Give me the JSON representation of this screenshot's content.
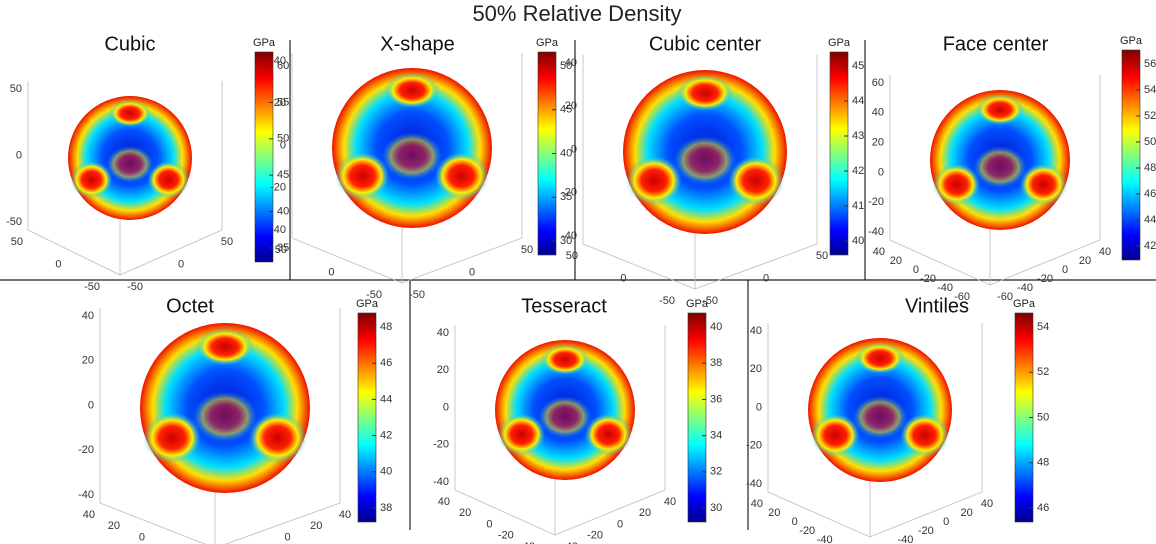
{
  "title": "50% Relative Density",
  "panels": [
    {
      "title": "Cubic",
      "unit": "GPa",
      "colorbar_ticks": [
        "35",
        "40",
        "45",
        "50",
        "55",
        "60"
      ],
      "z_ticks": [
        "50",
        "0",
        "-50"
      ],
      "left_ticks": [
        "50",
        "0",
        "-50"
      ],
      "right_ticks": [
        "50",
        "0",
        "-50"
      ]
    },
    {
      "title": "X-shape",
      "unit": "GPa",
      "colorbar_ticks": [
        "30",
        "35",
        "40",
        "45",
        "50"
      ],
      "z_ticks": [
        "40",
        "20",
        "0",
        "-20",
        "-40"
      ],
      "left_ticks": [
        "50",
        "0",
        "-50"
      ],
      "right_ticks": [
        "50",
        "0",
        "-50"
      ]
    },
    {
      "title": "Cubic center",
      "unit": "GPa",
      "colorbar_ticks": [
        "40",
        "41",
        "42",
        "43",
        "44",
        "45"
      ],
      "z_ticks": [
        "40",
        "20",
        "0",
        "-20",
        "-40"
      ],
      "left_ticks": [
        "50",
        "0",
        "-50"
      ],
      "right_ticks": [
        "50",
        "0",
        "-50"
      ]
    },
    {
      "title": "Face center",
      "unit": "GPa",
      "colorbar_ticks": [
        "42",
        "44",
        "46",
        "48",
        "50",
        "52",
        "54",
        "56"
      ],
      "z_ticks": [
        "60",
        "40",
        "20",
        "0",
        "-20",
        "-40"
      ],
      "left_ticks": [
        "40",
        "20",
        "0",
        "-20",
        "-40",
        "-60"
      ],
      "right_ticks": [
        "40",
        "20",
        "0",
        "-20",
        "-40",
        "-60"
      ]
    },
    {
      "title": "Octet",
      "unit": "GPa",
      "colorbar_ticks": [
        "38",
        "40",
        "42",
        "44",
        "46",
        "48"
      ],
      "z_ticks": [
        "40",
        "20",
        "0",
        "-20",
        "-40"
      ],
      "left_ticks": [
        "40",
        "20",
        "0",
        "-20",
        "-40"
      ],
      "right_ticks": [
        "40",
        "20",
        "0",
        "-20",
        "-40"
      ]
    },
    {
      "title": "Tesseract",
      "unit": "GPa",
      "colorbar_ticks": [
        "30",
        "32",
        "34",
        "36",
        "38",
        "40"
      ],
      "z_ticks": [
        "40",
        "20",
        "0",
        "-20",
        "-40"
      ],
      "left_ticks": [
        "40",
        "20",
        "0",
        "-20",
        "-40"
      ],
      "right_ticks": [
        "40",
        "20",
        "0",
        "-20",
        "-40"
      ]
    },
    {
      "title": "Vintiles",
      "unit": "GPa",
      "colorbar_ticks": [
        "46",
        "48",
        "50",
        "52",
        "54"
      ],
      "z_ticks": [
        "40",
        "20",
        "0",
        "-20",
        "-40"
      ],
      "left_ticks": [
        "40",
        "20",
        "0",
        "-20",
        "-40",
        "-60"
      ],
      "right_ticks": [
        "40",
        "20",
        "0",
        "-20",
        "-40",
        "-60"
      ]
    }
  ]
}
